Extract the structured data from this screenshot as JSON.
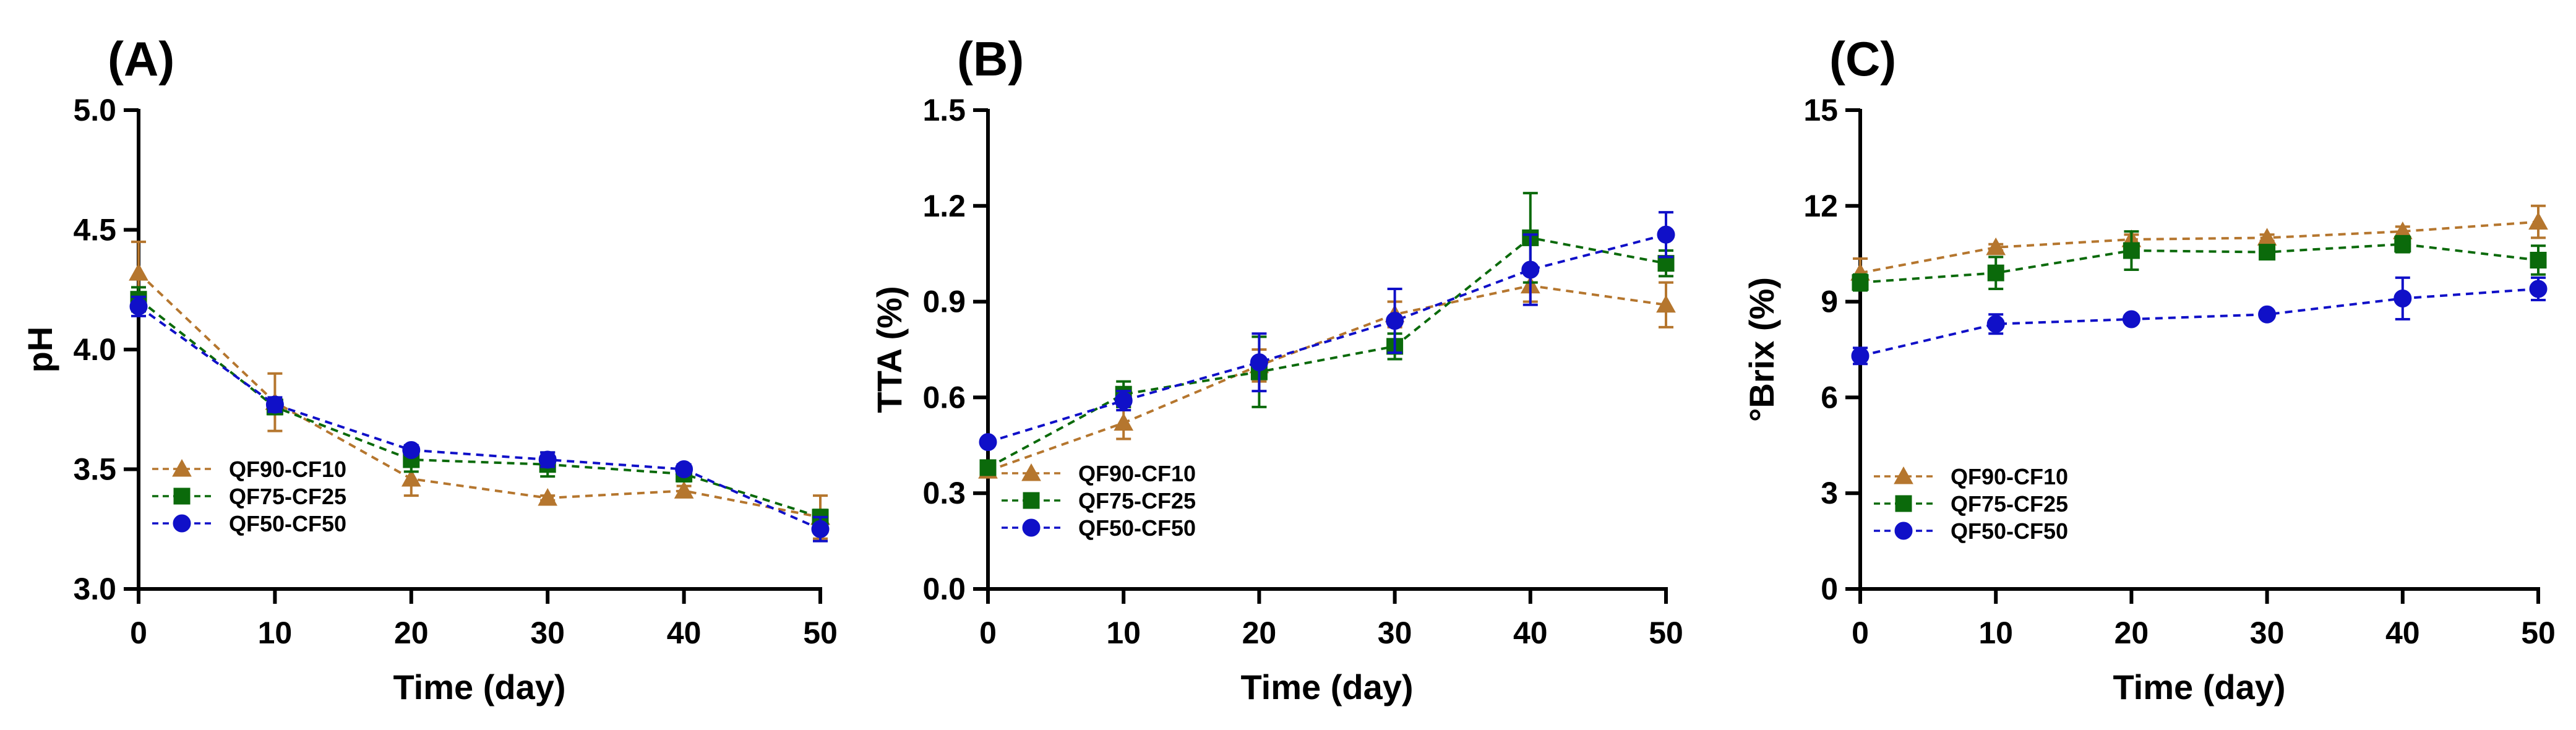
{
  "chart_data": [
    {
      "type": "line",
      "panel_label": "(A)",
      "xlabel": "Time (day)",
      "ylabel": "pH",
      "x": [
        0,
        10,
        20,
        30,
        40,
        50
      ],
      "x_tick_labels": [
        "0",
        "10",
        "20",
        "30",
        "40",
        "50"
      ],
      "xlim": [
        0,
        50
      ],
      "ylim": [
        3.0,
        5.0
      ],
      "y_ticks": [
        3.0,
        3.5,
        4.0,
        4.5,
        5.0
      ],
      "y_tick_labels": [
        "3.0",
        "3.5",
        "4.0",
        "4.5",
        "5.0"
      ],
      "grid": false,
      "legend_placement": "bottom-left",
      "series": [
        {
          "name": "QF90-CF10",
          "color": "#B5762E",
          "marker": "triangle",
          "values": [
            4.32,
            3.78,
            3.46,
            3.38,
            3.41,
            3.3
          ],
          "errors": [
            0.13,
            0.12,
            0.07,
            0.01,
            0.02,
            0.09
          ]
        },
        {
          "name": "QF75-CF25",
          "color": "#0B6A0B",
          "marker": "square",
          "values": [
            4.21,
            3.76,
            3.54,
            3.52,
            3.48,
            3.3
          ],
          "errors": [
            0.05,
            0.03,
            0.05,
            0.05,
            0.03,
            0.03
          ]
        },
        {
          "name": "QF50-CF50",
          "color": "#1010C8",
          "marker": "circle",
          "values": [
            4.18,
            3.77,
            3.58,
            3.54,
            3.5,
            3.25
          ],
          "errors": [
            0.04,
            0.03,
            0.02,
            0.03,
            0.02,
            0.05
          ]
        }
      ]
    },
    {
      "type": "line",
      "panel_label": "(B)",
      "xlabel": "Time (day)",
      "ylabel": "TTA (%)",
      "x": [
        0,
        10,
        20,
        30,
        40,
        50
      ],
      "x_tick_labels": [
        "0",
        "10",
        "20",
        "30",
        "40",
        "50"
      ],
      "xlim": [
        0,
        50
      ],
      "ylim": [
        0.0,
        1.5
      ],
      "y_ticks": [
        0.0,
        0.3,
        0.6,
        0.9,
        1.2,
        1.5
      ],
      "y_tick_labels": [
        "0.0",
        "0.3",
        "0.6",
        "0.9",
        "1.2",
        "1.5"
      ],
      "grid": false,
      "legend_placement": "bottom-left",
      "series": [
        {
          "name": "QF90-CF10",
          "color": "#B5762E",
          "marker": "triangle",
          "values": [
            0.37,
            0.52,
            0.7,
            0.86,
            0.95,
            0.89
          ],
          "errors": [
            0.02,
            0.05,
            0.05,
            0.04,
            0.05,
            0.07
          ]
        },
        {
          "name": "QF75-CF25",
          "color": "#0B6A0B",
          "marker": "square",
          "values": [
            0.38,
            0.61,
            0.68,
            0.76,
            1.1,
            1.02
          ],
          "errors": [
            0.02,
            0.04,
            0.11,
            0.04,
            0.14,
            0.04
          ]
        },
        {
          "name": "QF50-CF50",
          "color": "#1010C8",
          "marker": "circle",
          "values": [
            0.46,
            0.59,
            0.71,
            0.84,
            1.0,
            1.11
          ],
          "errors": [
            0.01,
            0.03,
            0.09,
            0.1,
            0.11,
            0.07
          ]
        }
      ]
    },
    {
      "type": "line",
      "panel_label": "(C)",
      "xlabel": "Time (day)",
      "ylabel": "°Brix (%)",
      "x": [
        0,
        10,
        20,
        30,
        40,
        50
      ],
      "x_tick_labels": [
        "0",
        "10",
        "20",
        "30",
        "40",
        "50"
      ],
      "xlim": [
        0,
        50
      ],
      "ylim": [
        0,
        15
      ],
      "y_ticks": [
        0,
        3,
        6,
        9,
        12,
        15
      ],
      "y_tick_labels": [
        "0",
        "3",
        "6",
        "9",
        "12",
        "15"
      ],
      "grid": false,
      "legend_placement": "bottom-left",
      "series": [
        {
          "name": "QF90-CF10",
          "color": "#B5762E",
          "marker": "triangle",
          "values": [
            9.9,
            10.7,
            10.95,
            11.0,
            11.2,
            11.5
          ],
          "errors": [
            0.45,
            0.1,
            0.15,
            0.1,
            0.15,
            0.5
          ]
        },
        {
          "name": "QF75-CF25",
          "color": "#0B6A0B",
          "marker": "square",
          "values": [
            9.6,
            9.9,
            10.6,
            10.55,
            10.8,
            10.3
          ],
          "errors": [
            0.25,
            0.5,
            0.6,
            0.2,
            0.25,
            0.45
          ]
        },
        {
          "name": "QF50-CF50",
          "color": "#1010C8",
          "marker": "circle",
          "values": [
            7.3,
            8.3,
            8.45,
            8.6,
            9.1,
            9.4
          ],
          "errors": [
            0.25,
            0.3,
            0.1,
            0.1,
            0.65,
            0.35
          ]
        }
      ]
    }
  ]
}
